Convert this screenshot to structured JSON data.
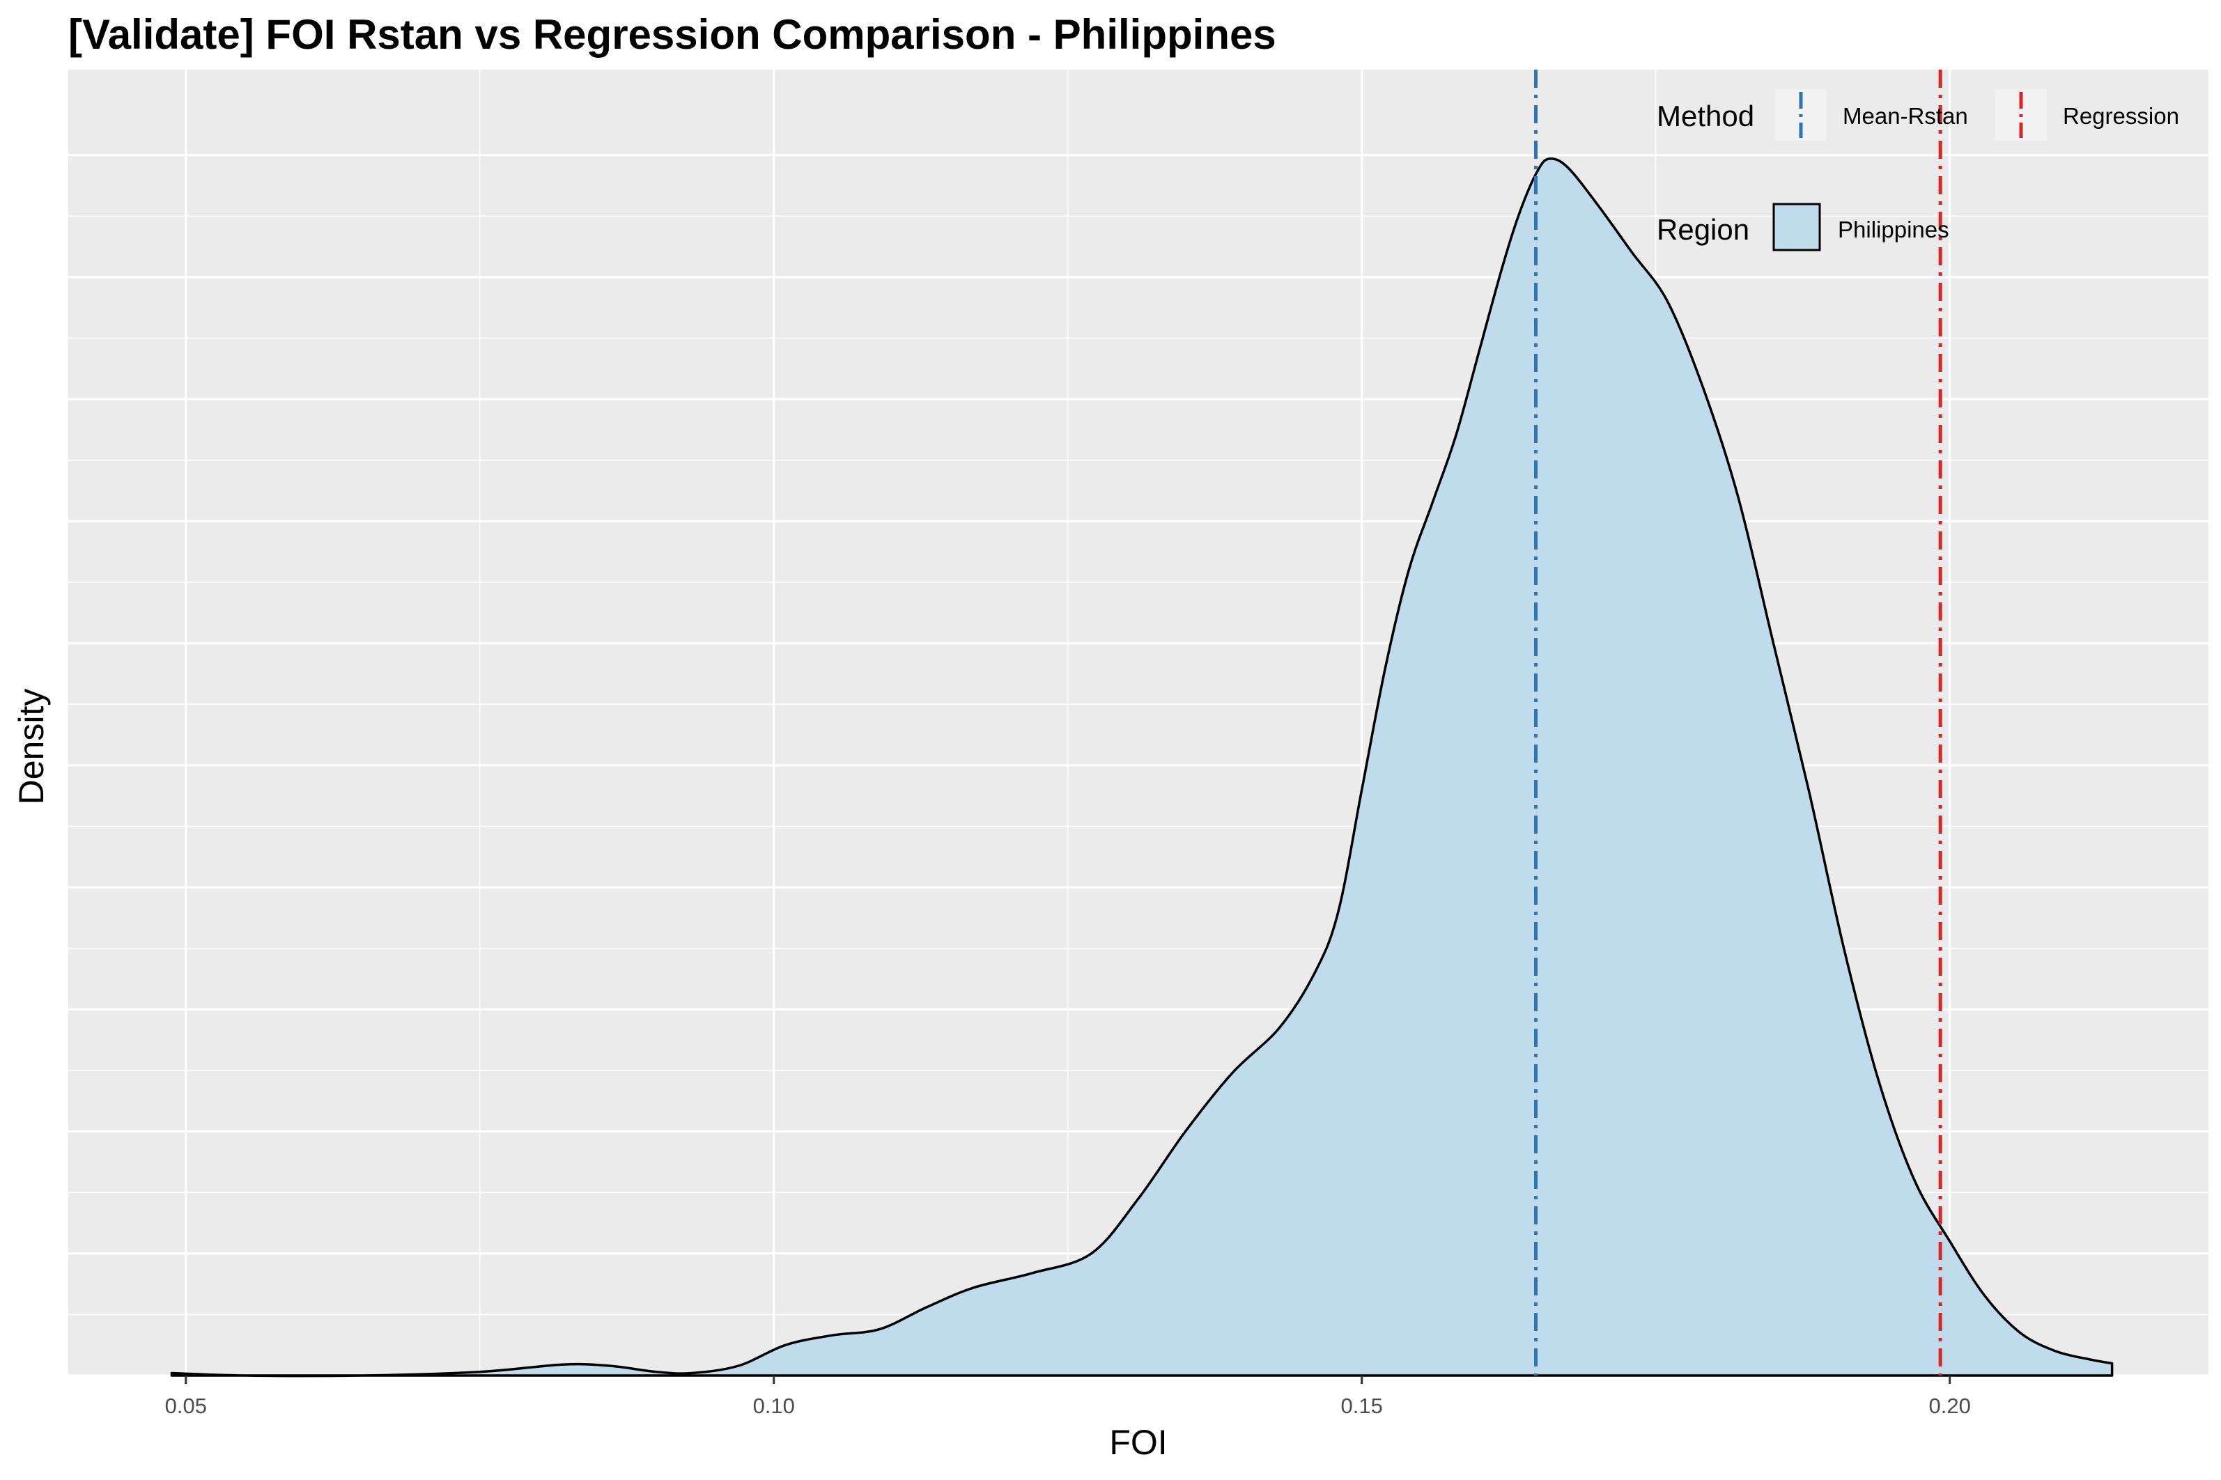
{
  "chart_data": {
    "type": "area",
    "title": "[Validate] FOI Rstan vs Regression Comparison - Philippines",
    "xlabel": "FOI",
    "ylabel": "Density",
    "xlim": [
      0.04,
      0.222
    ],
    "ylim": [
      0,
      1.07
    ],
    "x_ticks": [
      "0.05",
      "0.10",
      "0.15",
      "0.20"
    ],
    "x_tick_values": [
      0.05,
      0.1,
      0.15,
      0.2
    ],
    "grid": true,
    "y_tick_labels_shown": false,
    "legend_position": "top-right",
    "series": [
      {
        "name": "Philippines",
        "legend_group": "Region",
        "fill_color": "#c0dbeb",
        "line_color": "#000000",
        "x": [
          0.0488,
          0.055,
          0.065,
          0.075,
          0.082,
          0.086,
          0.09,
          0.093,
          0.097,
          0.101,
          0.105,
          0.109,
          0.113,
          0.117,
          0.122,
          0.127,
          0.131,
          0.135,
          0.139,
          0.143,
          0.146,
          0.148,
          0.15,
          0.152,
          0.154,
          0.156,
          0.158,
          0.16,
          0.162,
          0.1635,
          0.165,
          0.166,
          0.1675,
          0.17,
          0.173,
          0.176,
          0.179,
          0.182,
          0.185,
          0.188,
          0.191,
          0.194,
          0.197,
          0.2,
          0.203,
          0.206,
          0.209,
          0.212,
          0.2138
        ],
        "y": [
          0.002,
          0.0,
          0.0,
          0.003,
          0.009,
          0.008,
          0.003,
          0.002,
          0.008,
          0.025,
          0.033,
          0.038,
          0.056,
          0.072,
          0.084,
          0.1,
          0.145,
          0.2,
          0.248,
          0.285,
          0.33,
          0.38,
          0.48,
          0.58,
          0.66,
          0.715,
          0.77,
          0.84,
          0.91,
          0.955,
          0.988,
          0.997,
          0.99,
          0.96,
          0.92,
          0.88,
          0.81,
          0.72,
          0.6,
          0.48,
          0.35,
          0.24,
          0.16,
          0.11,
          0.065,
          0.035,
          0.02,
          0.013,
          0.01
        ]
      }
    ],
    "vlines": [
      {
        "name": "Mean-Rstan",
        "legend_group": "Method",
        "x": 0.1648,
        "color": "#2e75b6",
        "linetype": "dashdot"
      },
      {
        "name": "Regression",
        "legend_group": "Method",
        "x": 0.1992,
        "color": "#d62728",
        "linetype": "dashdot"
      }
    ],
    "legend": {
      "method_title": "Method",
      "region_title": "Region",
      "method_items": [
        "Mean-Rstan",
        "Regression"
      ],
      "region_items": [
        "Philippines"
      ]
    },
    "panel_background": "#ebebeb",
    "grid_color": "#ffffff"
  }
}
